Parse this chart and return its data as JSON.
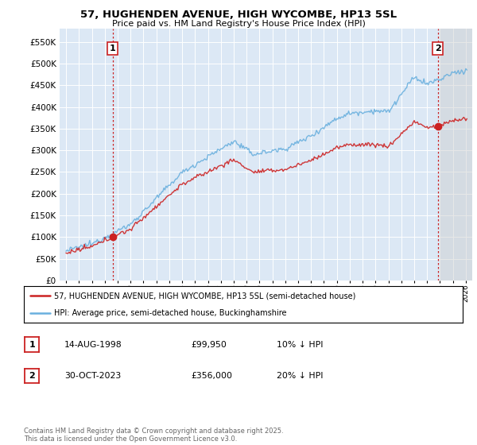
{
  "title": "57, HUGHENDEN AVENUE, HIGH WYCOMBE, HP13 5SL",
  "subtitle": "Price paid vs. HM Land Registry's House Price Index (HPI)",
  "background_color": "#ffffff",
  "plot_bg_color": "#dce8f5",
  "grid_color": "#ffffff",
  "hpi_color": "#6ab0de",
  "price_color": "#cc2222",
  "vline_color": "#cc2222",
  "future_hatch_color": "#bbbbbb",
  "ylim": [
    0,
    580000
  ],
  "yticks": [
    0,
    50000,
    100000,
    150000,
    200000,
    250000,
    300000,
    350000,
    400000,
    450000,
    500000,
    550000
  ],
  "xlim_start": 1994.5,
  "xlim_end": 2026.5,
  "future_start": 2024.0,
  "sale1_year": 1998.617,
  "sale1_price": 99950,
  "sale1_label": "1",
  "sale2_year": 2023.831,
  "sale2_price": 356000,
  "sale2_label": "2",
  "legend_line1": "57, HUGHENDEN AVENUE, HIGH WYCOMBE, HP13 5SL (semi-detached house)",
  "legend_line2": "HPI: Average price, semi-detached house, Buckinghamshire",
  "table_row1": [
    "1",
    "14-AUG-1998",
    "£99,950",
    "10% ↓ HPI"
  ],
  "table_row2": [
    "2",
    "30-OCT-2023",
    "£356,000",
    "20% ↓ HPI"
  ],
  "footnote": "Contains HM Land Registry data © Crown copyright and database right 2025.\nThis data is licensed under the Open Government Licence v3.0.",
  "xtick_years": [
    1995,
    1996,
    1997,
    1998,
    1999,
    2000,
    2001,
    2002,
    2003,
    2004,
    2005,
    2006,
    2007,
    2008,
    2009,
    2010,
    2011,
    2012,
    2013,
    2014,
    2015,
    2016,
    2017,
    2018,
    2019,
    2020,
    2021,
    2022,
    2023,
    2024,
    2025,
    2026
  ]
}
